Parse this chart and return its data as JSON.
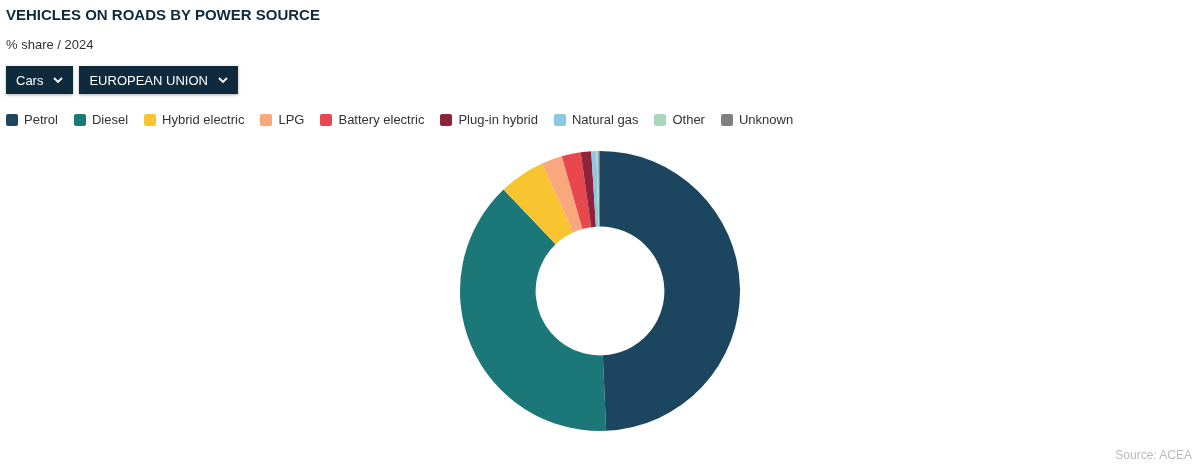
{
  "chart_data": {
    "type": "donut",
    "title": "VEHICLES ON ROADS BY POWER SOURCE",
    "subtitle": "% share / 2024",
    "annotations": [
      "Cars",
      "EUROPEAN UNION",
      "Source: ACEA"
    ],
    "categories": [
      "Petrol",
      "Diesel",
      "Hybrid electric",
      "LPG",
      "Battery electric",
      "Plug-in hybrid",
      "Natural gas",
      "Other",
      "Unknown"
    ],
    "values": [
      49.3,
      38.6,
      5.3,
      2.4,
      2.2,
      1.2,
      0.6,
      0.2,
      0.2
    ],
    "colors": [
      "#1c4560",
      "#1c7878",
      "#f8c531",
      "#f9a77c",
      "#e8474f",
      "#8e2439",
      "#8ec7e6",
      "#a8d8bf",
      "#808080"
    ],
    "legend": "top left"
  }
}
